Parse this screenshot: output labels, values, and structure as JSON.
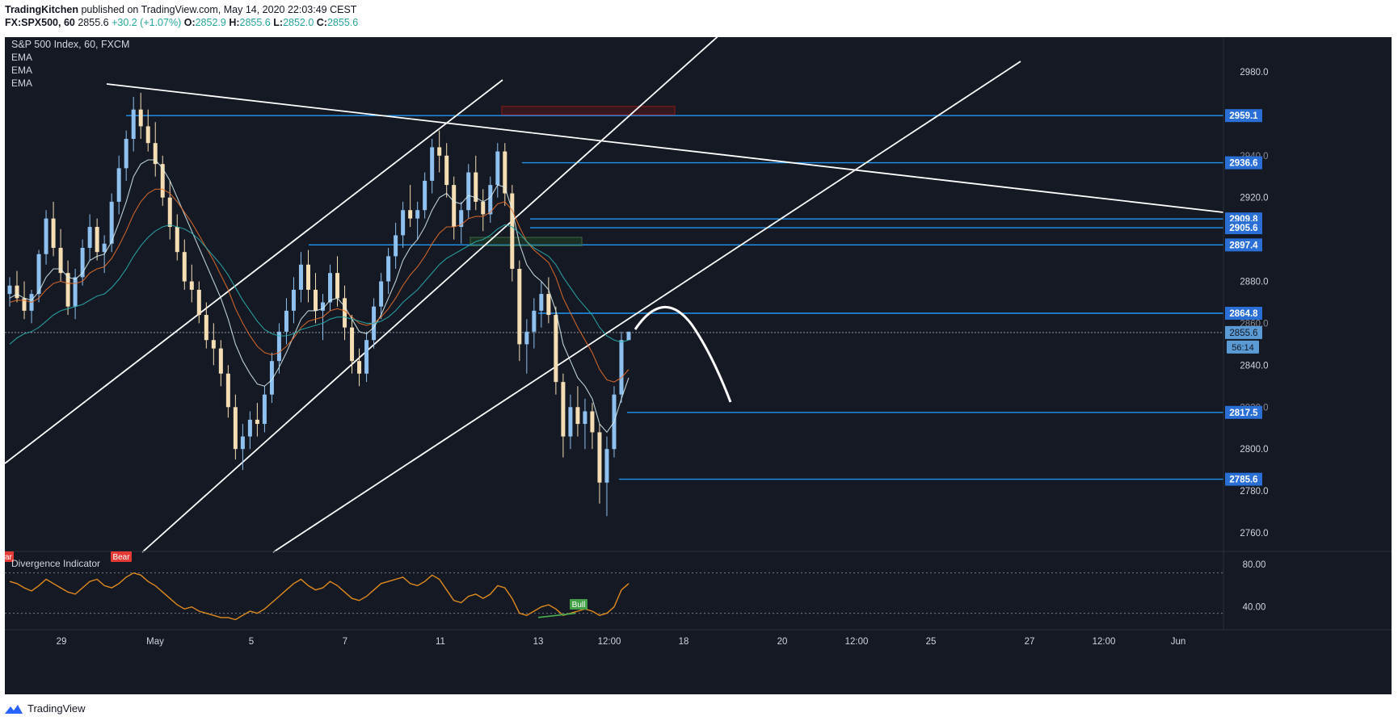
{
  "header": {
    "author": "TradingKitchen",
    "published": "published on TradingView.com, May 14, 2020 22:03:49 CEST",
    "symbol": "FX:SPX500, 60",
    "last": "2855.6",
    "change": "+30.2 (+1.07%)",
    "o_label": "O:",
    "o_value": "2852.9",
    "h_label": "H:",
    "h_value": "2855.6",
    "l_label": "L:",
    "l_value": "2852.0",
    "c_label": "C:",
    "c_value": "2855.6"
  },
  "legend": {
    "title": "S&P 500 Index, 60, FXCM",
    "indicators": [
      "EMA",
      "EMA",
      "EMA"
    ],
    "oscillator": "Divergence Indicator"
  },
  "labels": {
    "bear": "Bear",
    "bear_cut": "ar",
    "bull": "Bull",
    "countdown": "56:14"
  },
  "footer": {
    "brand": "TradingView"
  },
  "colors": {
    "background": "#151924",
    "level_line": "#2196f3",
    "level_tag": "#2a6fd6",
    "trend_line": "#ffffff",
    "candle_up": "#8ec1f0",
    "candle_down": "#f5deb3",
    "ema_fast": "#d7f0f0",
    "ema_mid": "#e8702a",
    "ema_slow": "#2bb3b3",
    "oscillator": "#e08a1e"
  },
  "chart_data": {
    "type": "candlestick",
    "title": "S&P 500 Index, 60, FXCM",
    "y_range": [
      2750,
      2995
    ],
    "y_ticks": [
      2980.0,
      2920.0,
      2880.0,
      2840.0,
      2800.0,
      2780.0,
      2760.0
    ],
    "y_ticks_partial": [
      "2940.0",
      "2860.0",
      "2820.0"
    ],
    "x_ticks": [
      "29",
      "May",
      "5",
      "7",
      "11",
      "13",
      "12:00",
      "18",
      "20",
      "12:00",
      "25",
      "27",
      "12:00",
      "Jun"
    ],
    "price_levels": [
      2959.1,
      2936.6,
      2909.8,
      2905.6,
      2897.4,
      2864.8,
      2817.5,
      2785.6
    ],
    "current_price": 2855.6,
    "ohlc": [
      [
        2874,
        2882,
        2868,
        2878
      ],
      [
        2878,
        2885,
        2870,
        2872
      ],
      [
        2872,
        2880,
        2862,
        2866
      ],
      [
        2866,
        2876,
        2860,
        2874
      ],
      [
        2874,
        2895,
        2870,
        2893
      ],
      [
        2893,
        2914,
        2888,
        2910
      ],
      [
        2910,
        2918,
        2892,
        2896
      ],
      [
        2896,
        2905,
        2880,
        2884
      ],
      [
        2884,
        2890,
        2864,
        2868
      ],
      [
        2868,
        2886,
        2862,
        2882
      ],
      [
        2882,
        2900,
        2878,
        2896
      ],
      [
        2896,
        2912,
        2890,
        2906
      ],
      [
        2906,
        2910,
        2890,
        2894
      ],
      [
        2894,
        2902,
        2884,
        2898
      ],
      [
        2898,
        2922,
        2894,
        2918
      ],
      [
        2918,
        2940,
        2912,
        2934
      ],
      [
        2934,
        2952,
        2928,
        2948
      ],
      [
        2948,
        2968,
        2942,
        2962
      ],
      [
        2962,
        2970,
        2948,
        2954
      ],
      [
        2954,
        2962,
        2942,
        2946
      ],
      [
        2946,
        2956,
        2930,
        2936
      ],
      [
        2936,
        2940,
        2916,
        2920
      ],
      [
        2920,
        2928,
        2900,
        2906
      ],
      [
        2906,
        2912,
        2890,
        2894
      ],
      [
        2894,
        2900,
        2876,
        2880
      ],
      [
        2880,
        2888,
        2870,
        2876
      ],
      [
        2876,
        2880,
        2860,
        2864
      ],
      [
        2864,
        2870,
        2848,
        2852
      ],
      [
        2852,
        2860,
        2840,
        2848
      ],
      [
        2848,
        2852,
        2830,
        2836
      ],
      [
        2836,
        2840,
        2815,
        2820
      ],
      [
        2820,
        2826,
        2795,
        2800
      ],
      [
        2800,
        2812,
        2790,
        2806
      ],
      [
        2806,
        2818,
        2800,
        2814
      ],
      [
        2814,
        2822,
        2806,
        2812
      ],
      [
        2812,
        2830,
        2808,
        2826
      ],
      [
        2826,
        2846,
        2822,
        2842
      ],
      [
        2842,
        2860,
        2836,
        2856
      ],
      [
        2856,
        2872,
        2850,
        2866
      ],
      [
        2866,
        2882,
        2860,
        2876
      ],
      [
        2876,
        2894,
        2870,
        2888
      ],
      [
        2888,
        2895,
        2870,
        2876
      ],
      [
        2876,
        2884,
        2860,
        2866
      ],
      [
        2866,
        2874,
        2852,
        2870
      ],
      [
        2870,
        2888,
        2866,
        2884
      ],
      [
        2884,
        2892,
        2868,
        2872
      ],
      [
        2872,
        2878,
        2852,
        2858
      ],
      [
        2858,
        2864,
        2836,
        2842
      ],
      [
        2842,
        2848,
        2830,
        2836
      ],
      [
        2836,
        2856,
        2832,
        2852
      ],
      [
        2852,
        2872,
        2848,
        2868
      ],
      [
        2868,
        2884,
        2862,
        2880
      ],
      [
        2880,
        2896,
        2874,
        2892
      ],
      [
        2892,
        2908,
        2886,
        2902
      ],
      [
        2902,
        2918,
        2896,
        2914
      ],
      [
        2914,
        2926,
        2906,
        2910
      ],
      [
        2910,
        2918,
        2900,
        2914
      ],
      [
        2914,
        2932,
        2910,
        2928
      ],
      [
        2928,
        2948,
        2922,
        2944
      ],
      [
        2944,
        2952,
        2932,
        2940
      ],
      [
        2940,
        2946,
        2920,
        2926
      ],
      [
        2926,
        2930,
        2900,
        2906
      ],
      [
        2906,
        2918,
        2898,
        2914
      ],
      [
        2914,
        2936,
        2910,
        2932
      ],
      [
        2932,
        2940,
        2914,
        2918
      ],
      [
        2918,
        2924,
        2904,
        2912
      ],
      [
        2912,
        2930,
        2908,
        2926
      ],
      [
        2926,
        2946,
        2920,
        2942
      ],
      [
        2942,
        2946,
        2916,
        2922
      ],
      [
        2922,
        2926,
        2880,
        2886
      ],
      [
        2886,
        2890,
        2842,
        2850
      ],
      [
        2850,
        2862,
        2836,
        2856
      ],
      [
        2856,
        2872,
        2848,
        2866
      ],
      [
        2866,
        2880,
        2858,
        2874
      ],
      [
        2874,
        2882,
        2860,
        2864
      ],
      [
        2864,
        2868,
        2826,
        2832
      ],
      [
        2832,
        2836,
        2796,
        2806
      ],
      [
        2806,
        2826,
        2800,
        2820
      ],
      [
        2820,
        2830,
        2806,
        2812
      ],
      [
        2812,
        2824,
        2800,
        2818
      ],
      [
        2818,
        2822,
        2800,
        2808
      ],
      [
        2808,
        2812,
        2774,
        2784
      ],
      [
        2784,
        2806,
        2768,
        2800
      ],
      [
        2800,
        2830,
        2796,
        2826
      ],
      [
        2826,
        2856,
        2822,
        2852
      ],
      [
        2852,
        2856,
        2852,
        2856
      ]
    ],
    "ema_fast": [
      2872,
      2874,
      2872,
      2871,
      2875,
      2882,
      2886,
      2886,
      2882,
      2881,
      2884,
      2890,
      2892,
      2893,
      2899,
      2908,
      2918,
      2930,
      2936,
      2938,
      2938,
      2934,
      2928,
      2920,
      2912,
      2904,
      2896,
      2888,
      2880,
      2872,
      2862,
      2850,
      2842,
      2836,
      2831,
      2830,
      2833,
      2839,
      2846,
      2854,
      2862,
      2866,
      2866,
      2867,
      2871,
      2872,
      2868,
      2862,
      2856,
      2855,
      2858,
      2864,
      2872,
      2880,
      2890,
      2896,
      2900,
      2906,
      2914,
      2920,
      2922,
      2918,
      2917,
      2921,
      2920,
      2918,
      2920,
      2926,
      2925,
      2914,
      2898,
      2888,
      2883,
      2880,
      2876,
      2866,
      2850,
      2842,
      2834,
      2830,
      2824,
      2812,
      2808,
      2813,
      2824,
      2834
    ],
    "ema_mid": [
      2870,
      2871,
      2871,
      2870,
      2872,
      2876,
      2879,
      2880,
      2879,
      2879,
      2880,
      2884,
      2886,
      2887,
      2891,
      2897,
      2904,
      2912,
      2918,
      2922,
      2924,
      2924,
      2922,
      2918,
      2913,
      2908,
      2902,
      2896,
      2890,
      2883,
      2876,
      2867,
      2860,
      2854,
      2849,
      2846,
      2845,
      2846,
      2849,
      2853,
      2858,
      2861,
      2862,
      2863,
      2866,
      2867,
      2866,
      2863,
      2860,
      2859,
      2860,
      2863,
      2867,
      2872,
      2878,
      2883,
      2887,
      2892,
      2898,
      2903,
      2906,
      2906,
      2907,
      2910,
      2911,
      2911,
      2913,
      2917,
      2918,
      2914,
      2906,
      2899,
      2895,
      2892,
      2889,
      2882,
      2872,
      2865,
      2858,
      2852,
      2846,
      2838,
      2833,
      2832,
      2834,
      2838
    ],
    "ema_slow": [
      2850,
      2853,
      2855,
      2856,
      2858,
      2861,
      2864,
      2866,
      2867,
      2868,
      2869,
      2871,
      2873,
      2874,
      2877,
      2881,
      2886,
      2892,
      2897,
      2901,
      2904,
      2906,
      2907,
      2906,
      2905,
      2903,
      2900,
      2896,
      2892,
      2888,
      2883,
      2877,
      2871,
      2866,
      2861,
      2857,
      2855,
      2854,
      2854,
      2855,
      2857,
      2858,
      2859,
      2860,
      2862,
      2863,
      2863,
      2862,
      2861,
      2860,
      2860,
      2861,
      2863,
      2866,
      2870,
      2873,
      2876,
      2880,
      2884,
      2888,
      2891,
      2893,
      2895,
      2897,
      2899,
      2900,
      2902,
      2905,
      2907,
      2906,
      2903,
      2899,
      2896,
      2894,
      2892,
      2888,
      2882,
      2877,
      2872,
      2868,
      2864,
      2858,
      2854,
      2852,
      2851,
      2852
    ],
    "oscillator": [
      64,
      62,
      58,
      55,
      60,
      66,
      62,
      58,
      54,
      52,
      58,
      64,
      66,
      60,
      58,
      62,
      68,
      72,
      70,
      64,
      60,
      54,
      48,
      42,
      38,
      40,
      36,
      34,
      32,
      30,
      30,
      28,
      32,
      36,
      34,
      38,
      44,
      50,
      56,
      62,
      66,
      60,
      56,
      58,
      64,
      60,
      54,
      48,
      46,
      50,
      56,
      62,
      64,
      66,
      68,
      62,
      60,
      64,
      70,
      66,
      56,
      46,
      44,
      50,
      52,
      48,
      52,
      60,
      58,
      48,
      34,
      32,
      36,
      40,
      42,
      38,
      32,
      34,
      36,
      38,
      36,
      32,
      34,
      40,
      56,
      62
    ]
  }
}
